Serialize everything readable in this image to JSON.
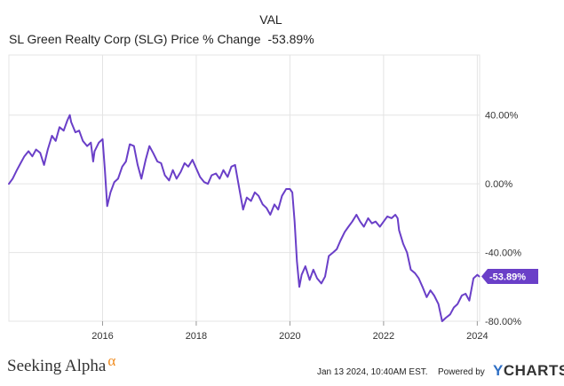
{
  "header": {
    "series_symbol": "VAL",
    "series_label": "SL Green Realty Corp (SLG) Price % Change",
    "series_value": "-53.89%"
  },
  "footer": {
    "brand": "Seeking Alpha",
    "brand_mark": "α",
    "timestamp": "Jan 13 2024, 10:40AM EST.",
    "powered_by": "Powered by",
    "provider_mark": "Y",
    "provider": "CHARTS"
  },
  "colors": {
    "line": "#6a3fc8",
    "badge": "#6a3fc8",
    "grid": "#e4e4e4",
    "brand_accent": "#f08c20",
    "provider_accent": "#2f6fc4"
  },
  "chart_data": {
    "type": "line",
    "title": "SL Green Realty Corp (SLG) Price % Change",
    "xlabel": "",
    "ylabel": "",
    "xlim": [
      2014.0,
      2024.05
    ],
    "ylim": [
      -80,
      75
    ],
    "x_ticks": [
      2016,
      2018,
      2020,
      2022,
      2024
    ],
    "x_tick_labels": [
      "2016",
      "2018",
      "2020",
      "2022",
      "2024"
    ],
    "y_ticks": [
      40,
      0,
      -40,
      -80
    ],
    "y_tick_labels": [
      "40.00%",
      "0.00%",
      "-40.00%",
      "-80.00%"
    ],
    "grid": true,
    "last_value_label": "-53.89%",
    "series": [
      {
        "name": "SL Green Realty Corp (SLG) Price % Change",
        "points": [
          [
            2014.0,
            0
          ],
          [
            2014.08,
            3
          ],
          [
            2014.17,
            8
          ],
          [
            2014.25,
            12
          ],
          [
            2014.33,
            16
          ],
          [
            2014.42,
            19
          ],
          [
            2014.5,
            16
          ],
          [
            2014.58,
            20
          ],
          [
            2014.67,
            18
          ],
          [
            2014.75,
            11
          ],
          [
            2014.83,
            20
          ],
          [
            2014.92,
            28
          ],
          [
            2015.0,
            25
          ],
          [
            2015.08,
            33
          ],
          [
            2015.17,
            31
          ],
          [
            2015.25,
            37
          ],
          [
            2015.3,
            40
          ],
          [
            2015.33,
            36
          ],
          [
            2015.42,
            30
          ],
          [
            2015.5,
            31
          ],
          [
            2015.58,
            25
          ],
          [
            2015.67,
            22
          ],
          [
            2015.75,
            24
          ],
          [
            2015.8,
            13
          ],
          [
            2015.83,
            19
          ],
          [
            2015.92,
            24
          ],
          [
            2016.0,
            26
          ],
          [
            2016.05,
            8
          ],
          [
            2016.1,
            -13
          ],
          [
            2016.17,
            -5
          ],
          [
            2016.25,
            1
          ],
          [
            2016.33,
            3
          ],
          [
            2016.42,
            10
          ],
          [
            2016.5,
            13
          ],
          [
            2016.58,
            23
          ],
          [
            2016.67,
            22
          ],
          [
            2016.75,
            11
          ],
          [
            2016.83,
            3
          ],
          [
            2016.92,
            14
          ],
          [
            2017.0,
            22
          ],
          [
            2017.08,
            18
          ],
          [
            2017.17,
            13
          ],
          [
            2017.25,
            12
          ],
          [
            2017.33,
            5
          ],
          [
            2017.42,
            2
          ],
          [
            2017.5,
            8
          ],
          [
            2017.58,
            3
          ],
          [
            2017.67,
            7
          ],
          [
            2017.75,
            12
          ],
          [
            2017.83,
            10
          ],
          [
            2017.92,
            14
          ],
          [
            2018.0,
            9
          ],
          [
            2018.08,
            4
          ],
          [
            2018.17,
            1
          ],
          [
            2018.25,
            0
          ],
          [
            2018.33,
            5
          ],
          [
            2018.42,
            6
          ],
          [
            2018.5,
            3
          ],
          [
            2018.58,
            8
          ],
          [
            2018.67,
            4
          ],
          [
            2018.75,
            10
          ],
          [
            2018.83,
            11
          ],
          [
            2018.92,
            -3
          ],
          [
            2019.0,
            -15
          ],
          [
            2019.08,
            -8
          ],
          [
            2019.17,
            -10
          ],
          [
            2019.25,
            -5
          ],
          [
            2019.33,
            -7
          ],
          [
            2019.42,
            -12
          ],
          [
            2019.5,
            -14
          ],
          [
            2019.58,
            -18
          ],
          [
            2019.67,
            -12
          ],
          [
            2019.75,
            -15
          ],
          [
            2019.83,
            -7
          ],
          [
            2019.92,
            -3
          ],
          [
            2020.0,
            -3
          ],
          [
            2020.05,
            -5
          ],
          [
            2020.1,
            -22
          ],
          [
            2020.15,
            -45
          ],
          [
            2020.2,
            -60
          ],
          [
            2020.25,
            -53
          ],
          [
            2020.33,
            -48
          ],
          [
            2020.42,
            -56
          ],
          [
            2020.5,
            -50
          ],
          [
            2020.58,
            -55
          ],
          [
            2020.67,
            -58
          ],
          [
            2020.75,
            -54
          ],
          [
            2020.83,
            -42
          ],
          [
            2020.92,
            -40
          ],
          [
            2021.0,
            -38
          ],
          [
            2021.08,
            -33
          ],
          [
            2021.17,
            -28
          ],
          [
            2021.25,
            -25
          ],
          [
            2021.33,
            -22
          ],
          [
            2021.42,
            -18
          ],
          [
            2021.5,
            -22
          ],
          [
            2021.58,
            -25
          ],
          [
            2021.67,
            -20
          ],
          [
            2021.75,
            -23
          ],
          [
            2021.83,
            -22
          ],
          [
            2021.92,
            -25
          ],
          [
            2022.0,
            -22
          ],
          [
            2022.08,
            -19
          ],
          [
            2022.17,
            -20
          ],
          [
            2022.25,
            -18
          ],
          [
            2022.3,
            -20
          ],
          [
            2022.33,
            -27
          ],
          [
            2022.42,
            -35
          ],
          [
            2022.5,
            -40
          ],
          [
            2022.58,
            -50
          ],
          [
            2022.67,
            -52
          ],
          [
            2022.75,
            -55
          ],
          [
            2022.83,
            -60
          ],
          [
            2022.92,
            -66
          ],
          [
            2023.0,
            -62
          ],
          [
            2023.08,
            -65
          ],
          [
            2023.17,
            -70
          ],
          [
            2023.25,
            -80
          ],
          [
            2023.33,
            -78
          ],
          [
            2023.42,
            -76
          ],
          [
            2023.5,
            -72
          ],
          [
            2023.58,
            -70
          ],
          [
            2023.67,
            -65
          ],
          [
            2023.75,
            -64
          ],
          [
            2023.83,
            -68
          ],
          [
            2023.92,
            -55
          ],
          [
            2024.0,
            -53
          ],
          [
            2024.04,
            -53.89
          ]
        ]
      }
    ]
  }
}
